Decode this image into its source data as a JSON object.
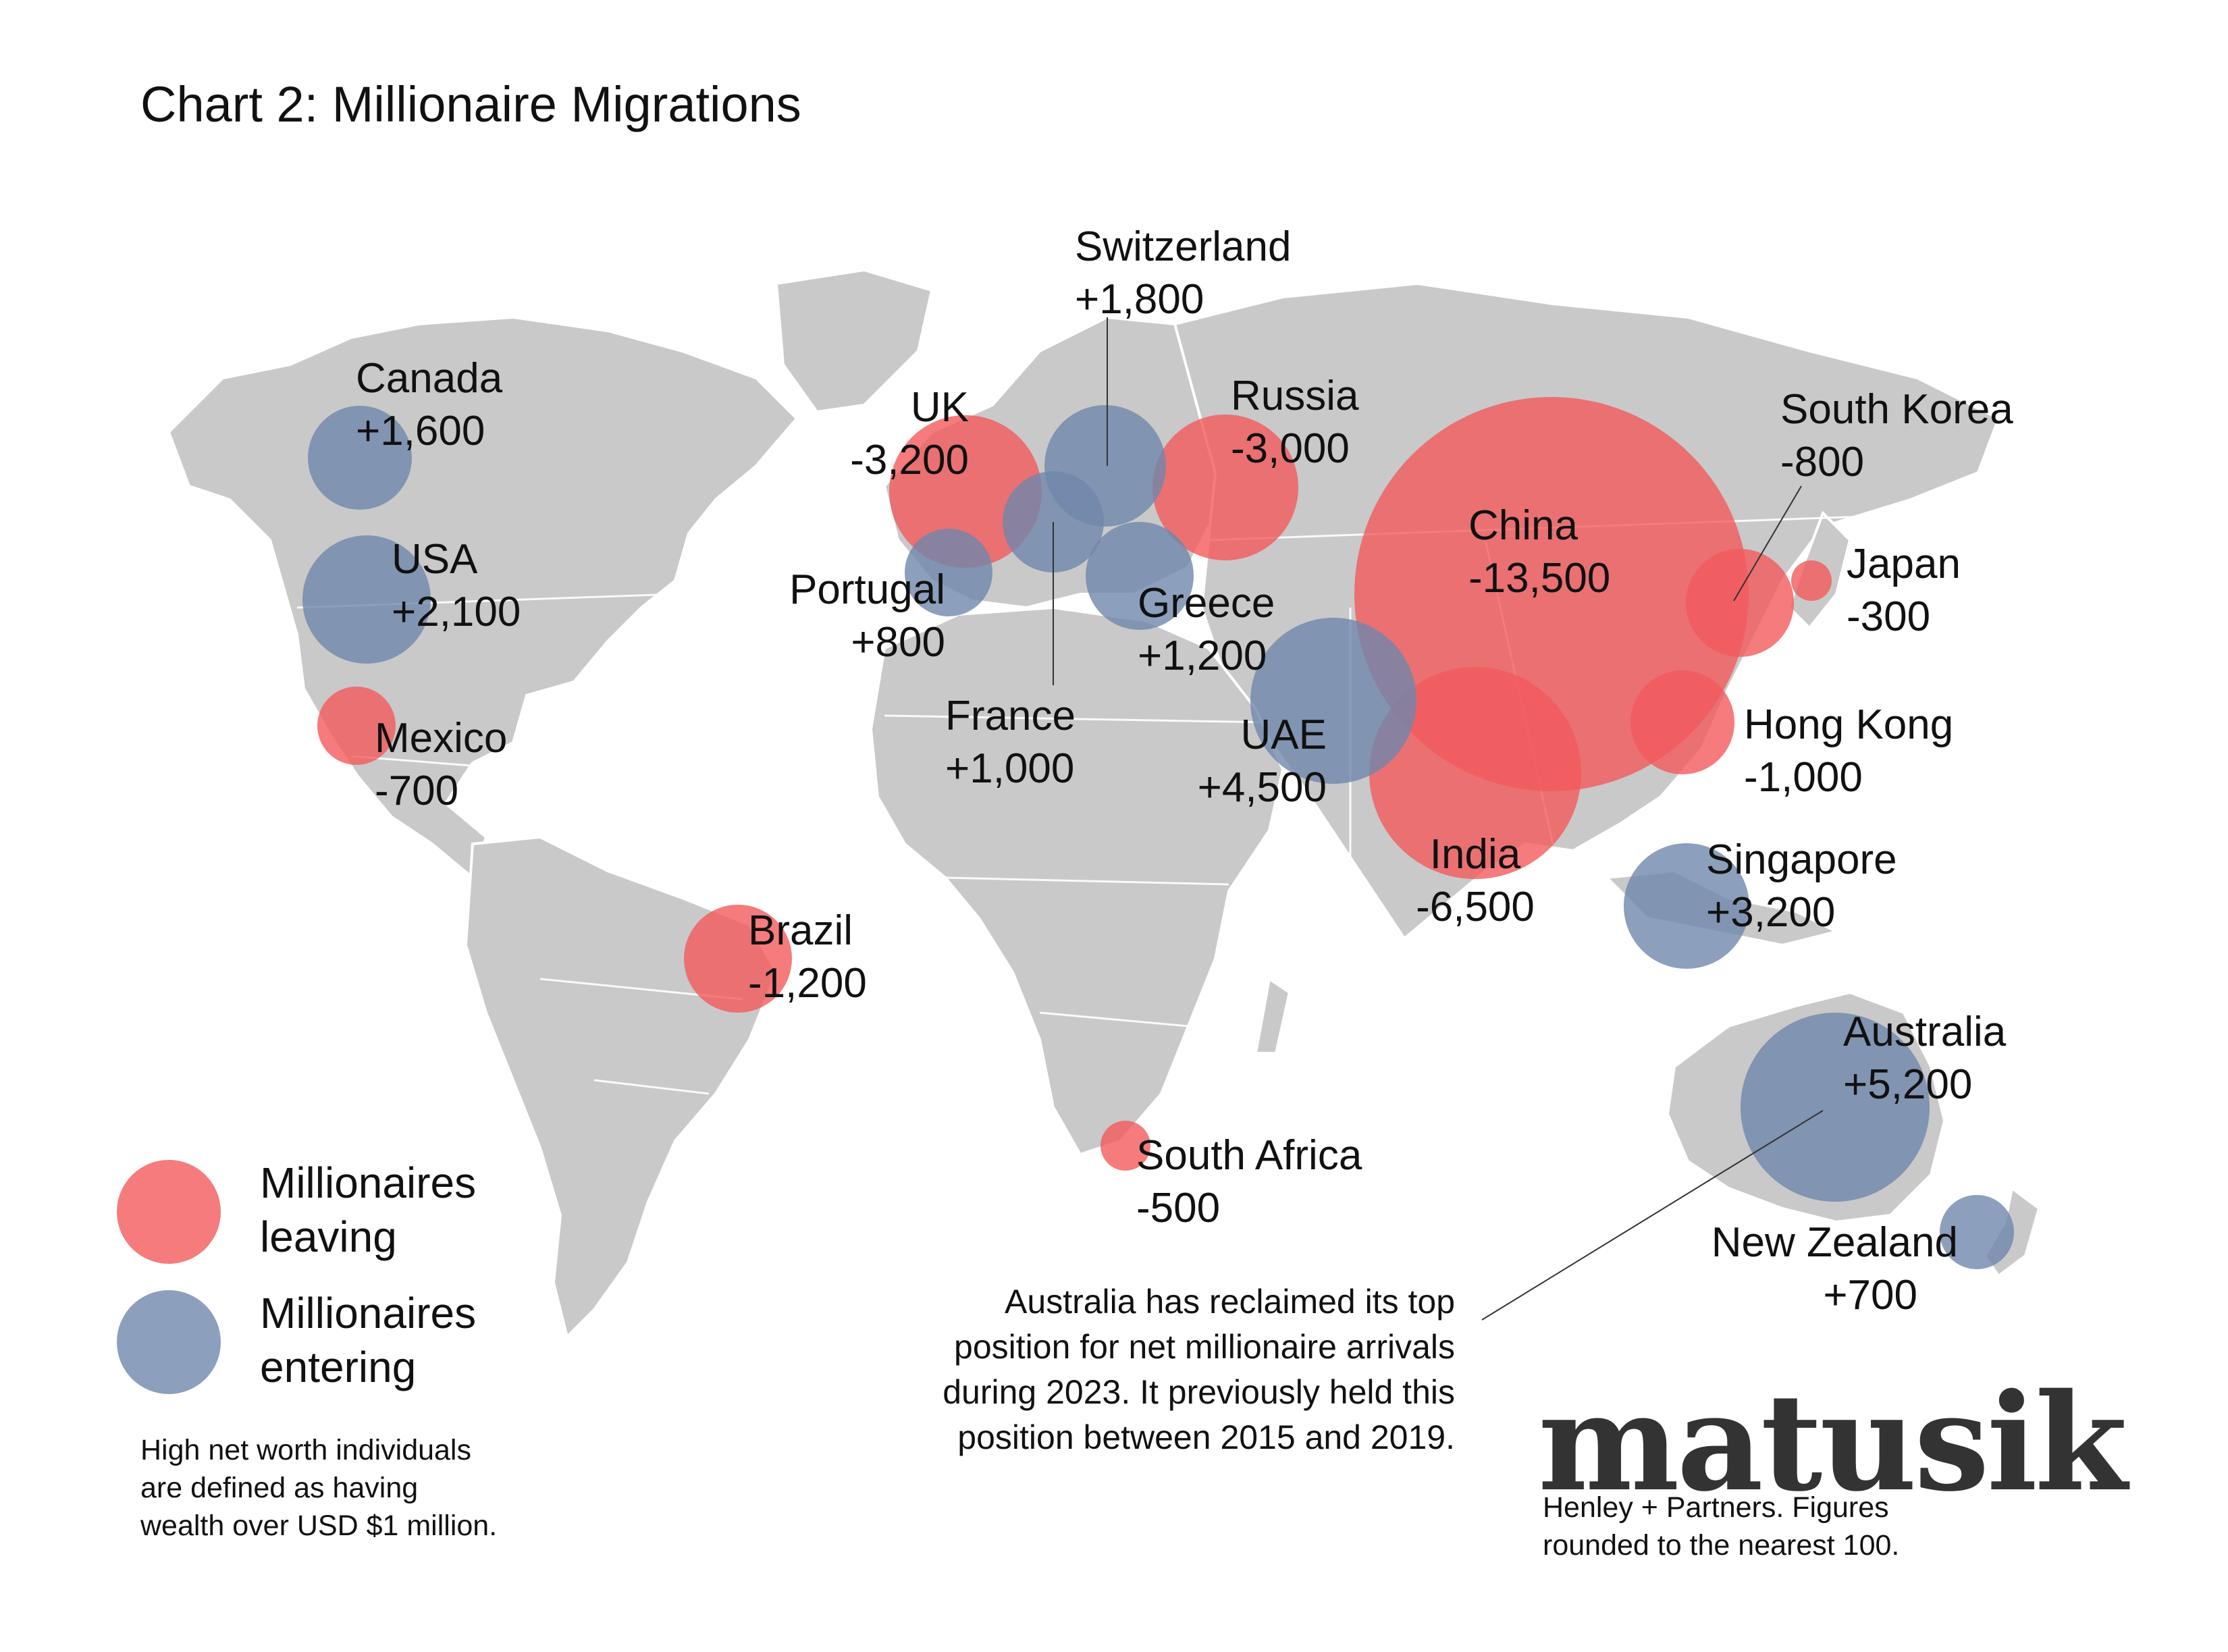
{
  "title": "Chart 2:  Millionaire Migrations",
  "colors": {
    "leaving": "#f25a5d",
    "entering": "#6f87ab",
    "map": "#c9c9c9"
  },
  "legend": {
    "leaving": [
      "Millionaires",
      "leaving"
    ],
    "entering": [
      "Millionaires",
      "entering"
    ]
  },
  "countries": [
    {
      "name": "Canada",
      "value": "+1,600"
    },
    {
      "name": "USA",
      "value": "+2,100"
    },
    {
      "name": "Mexico",
      "value": "-700"
    },
    {
      "name": "Brazil",
      "value": "-1,200"
    },
    {
      "name": "UK",
      "value": "-3,200"
    },
    {
      "name": "Portugal",
      "value": "+800"
    },
    {
      "name": "France",
      "value": "+1,000"
    },
    {
      "name": "Switzerland",
      "value": "+1,800"
    },
    {
      "name": "Greece",
      "value": "+1,200"
    },
    {
      "name": "Russia",
      "value": "-3,000"
    },
    {
      "name": "UAE",
      "value": "+4,500"
    },
    {
      "name": "India",
      "value": "-6,500"
    },
    {
      "name": "China",
      "value": "-13,500"
    },
    {
      "name": "Hong Kong",
      "value": "-1,000"
    },
    {
      "name": "South Korea",
      "value": "-800"
    },
    {
      "name": "Japan",
      "value": "-300"
    },
    {
      "name": "Singapore",
      "value": "+3,200"
    },
    {
      "name": "Australia",
      "value": "+5,200"
    },
    {
      "name": "New Zealand",
      "value": "+700"
    },
    {
      "name": "South Africa",
      "value": "-500"
    }
  ],
  "note": [
    "High net worth individuals",
    "are defined as having",
    "wealth over USD $1 million."
  ],
  "callout": {
    "bold": "Australia",
    "line1_rest": " has reclaimed its top",
    "lines": [
      "position for net millionaire arrivals",
      "during 2023.  It previously held this",
      "position between 2015 and 2019."
    ]
  },
  "brand": "matusik",
  "source": [
    "Henley + Partners.  Figures",
    "rounded to the nearest 100."
  ]
}
